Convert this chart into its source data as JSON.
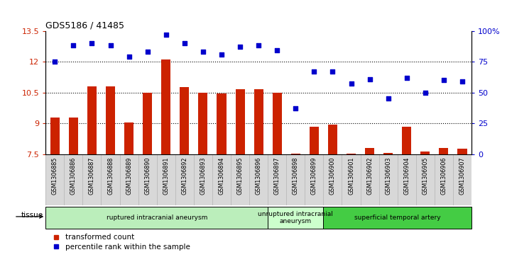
{
  "title": "GDS5186 / 41485",
  "samples": [
    "GSM1306885",
    "GSM1306886",
    "GSM1306887",
    "GSM1306888",
    "GSM1306889",
    "GSM1306890",
    "GSM1306891",
    "GSM1306892",
    "GSM1306893",
    "GSM1306894",
    "GSM1306895",
    "GSM1306896",
    "GSM1306897",
    "GSM1306898",
    "GSM1306899",
    "GSM1306900",
    "GSM1306901",
    "GSM1306902",
    "GSM1306903",
    "GSM1306904",
    "GSM1306905",
    "GSM1306906",
    "GSM1306907"
  ],
  "bar_values": [
    9.3,
    9.3,
    10.8,
    10.8,
    9.05,
    10.5,
    12.1,
    10.75,
    10.5,
    10.47,
    10.65,
    10.67,
    10.48,
    7.52,
    8.85,
    8.95,
    7.52,
    7.8,
    7.57,
    8.85,
    7.62,
    7.82,
    7.78
  ],
  "dot_values": [
    75,
    88,
    90,
    88,
    79,
    83,
    97,
    90,
    83,
    81,
    87,
    88,
    84,
    37,
    67,
    67,
    57,
    61,
    45,
    62,
    50,
    60,
    59
  ],
  "bar_color": "#cc2200",
  "dot_color": "#0000cc",
  "ylim_left": [
    7.5,
    13.5
  ],
  "ylim_right": [
    0,
    100
  ],
  "yticks_left": [
    7.5,
    9.0,
    10.5,
    12.0,
    13.5
  ],
  "yticks_left_labels": [
    "7.5",
    "9",
    "10.5",
    "12",
    "13.5"
  ],
  "yticks_right": [
    0,
    25,
    50,
    75,
    100
  ],
  "yticks_right_labels": [
    "0",
    "25",
    "50",
    "75",
    "100%"
  ],
  "hlines": [
    9.0,
    10.5,
    12.0
  ],
  "groups": [
    {
      "label": "ruptured intracranial aneurysm",
      "start": 0,
      "end": 12,
      "color": "#bbeebb"
    },
    {
      "label": "unruptured intracranial\naneurysm",
      "start": 12,
      "end": 15,
      "color": "#ccffcc"
    },
    {
      "label": "superficial temporal artery",
      "start": 15,
      "end": 23,
      "color": "#44cc44"
    }
  ],
  "tissue_label": "tissue",
  "legend_bar_label": "transformed count",
  "legend_dot_label": "percentile rank within the sample",
  "fig_bg_color": "#ffffff",
  "plot_bg_color": "#ffffff",
  "xticklabel_bg": "#d8d8d8"
}
